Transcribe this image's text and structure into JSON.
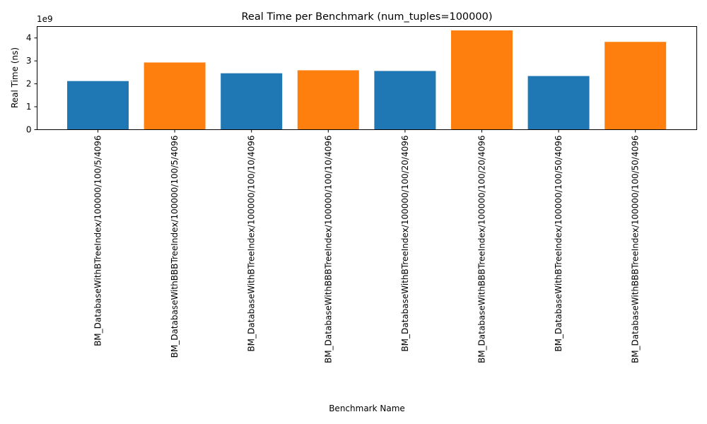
{
  "chart_data": {
    "type": "bar",
    "title": "Real Time per Benchmark (num_tuples=100000)",
    "xlabel": "Benchmark Name",
    "ylabel": "Real Time (ns)",
    "y_offset_label": "1e9",
    "y_scale": 1000000000,
    "ylim": [
      0,
      4500000000
    ],
    "yticks": [
      0,
      1,
      2,
      3,
      4
    ],
    "legend": "none",
    "grid": false,
    "colors": [
      "#1f77b4",
      "#ff7f0e"
    ],
    "categories": [
      "BM_DatabaseWithBTreeIndex/100000/100/5/4096",
      "BM_DatabaseWithBBBTreeIndex/100000/100/5/4096",
      "BM_DatabaseWithBTreeIndex/100000/100/10/4096",
      "BM_DatabaseWithBBBTreeIndex/100000/100/10/4096",
      "BM_DatabaseWithBTreeIndex/100000/100/20/4096",
      "BM_DatabaseWithBBBTreeIndex/100000/100/20/4096",
      "BM_DatabaseWithBTreeIndex/100000/100/50/4096",
      "BM_DatabaseWithBBBTreeIndex/100000/100/50/4096"
    ],
    "values": [
      2120000000,
      2930000000,
      2460000000,
      2590000000,
      2560000000,
      4330000000,
      2340000000,
      3830000000
    ]
  }
}
